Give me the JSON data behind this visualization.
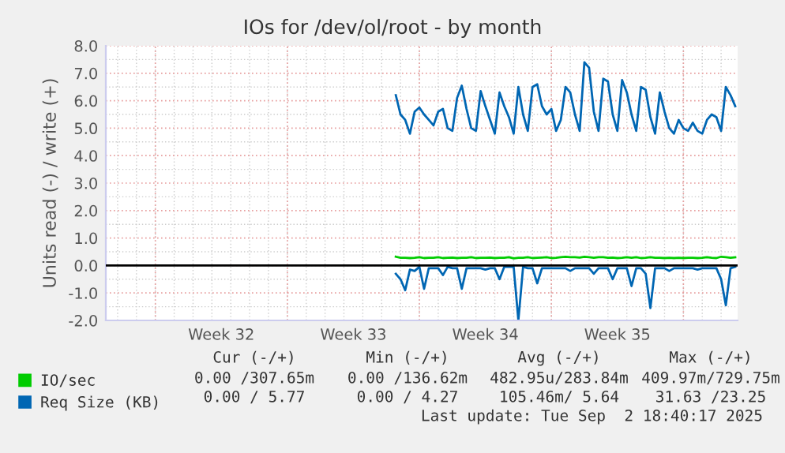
{
  "chart_data": {
    "type": "line",
    "title": "IOs for /dev/ol/root - by month",
    "ylabel": "Units read (-) / write (+)",
    "categories": [
      null,
      null,
      null,
      null,
      null,
      null,
      null,
      null,
      null,
      null,
      null,
      null,
      null,
      null,
      null,
      null,
      null,
      null,
      null,
      null,
      null,
      null,
      null,
      null,
      "Week 32",
      null,
      null,
      null,
      null,
      null,
      null,
      null,
      null,
      null,
      null,
      null,
      null,
      null,
      null,
      null,
      null,
      null,
      null,
      null,
      null,
      null,
      null,
      null,
      null,
      null,
      null,
      null,
      "Week 33",
      null,
      null,
      null,
      null,
      null,
      null,
      null,
      null,
      null,
      null,
      null,
      null,
      null,
      null,
      null,
      null,
      null,
      null,
      null,
      null,
      null,
      null,
      null,
      null,
      null,
      null,
      null,
      "Week 34",
      null,
      null,
      null,
      null,
      null,
      null,
      null,
      null,
      null,
      null,
      null,
      null,
      null,
      null,
      null,
      null,
      null,
      null,
      null,
      null,
      null,
      null,
      null,
      null,
      null,
      null,
      null,
      "Week 35",
      null,
      null,
      null,
      null,
      null,
      null,
      null,
      null,
      null,
      null,
      null,
      null,
      null,
      null,
      null,
      null,
      null,
      null,
      null,
      null,
      null,
      null,
      null,
      null,
      null
    ],
    "ylim": [
      -2,
      8
    ],
    "yticks": [
      {
        "value": -2,
        "label": "-2.0"
      },
      {
        "value": -1,
        "label": "-1.0"
      },
      {
        "value": 0,
        "label": "0.0"
      },
      {
        "value": 1,
        "label": "1.0"
      },
      {
        "value": 2,
        "label": "2.0"
      },
      {
        "value": 3,
        "label": "3.0"
      },
      {
        "value": 4,
        "label": "4.0"
      },
      {
        "value": 5,
        "label": "5.0"
      },
      {
        "value": 6,
        "label": "6.0"
      },
      {
        "value": 7,
        "label": "7.0"
      },
      {
        "value": 8,
        "label": "8.0"
      }
    ],
    "grid": true,
    "legend": "bottom",
    "ref_lines": [
      {
        "axis": "y",
        "value": 0,
        "label": null,
        "color": "#000000"
      }
    ],
    "series": [
      {
        "name": "IO/sec",
        "color": "#00cc00",
        "values": [
          null,
          null,
          null,
          null,
          null,
          null,
          null,
          null,
          null,
          null,
          null,
          null,
          null,
          null,
          null,
          null,
          null,
          null,
          null,
          null,
          null,
          null,
          null,
          null,
          null,
          null,
          null,
          null,
          null,
          null,
          null,
          null,
          null,
          null,
          null,
          null,
          null,
          null,
          null,
          null,
          null,
          null,
          null,
          null,
          null,
          null,
          null,
          null,
          null,
          null,
          null,
          null,
          null,
          null,
          null,
          null,
          null,
          null,
          null,
          null,
          null,
          0.32,
          0.28,
          0.28,
          0.27,
          0.28,
          0.3,
          0.27,
          0.28,
          0.28,
          0.3,
          0.27,
          0.28,
          0.29,
          0.27,
          0.28,
          0.28,
          0.3,
          0.27,
          0.28,
          0.28,
          0.29,
          0.27,
          0.28,
          0.28,
          0.3,
          0.26,
          0.28,
          0.28,
          0.3,
          0.27,
          0.28,
          0.29,
          0.3,
          0.27,
          0.28,
          0.3,
          0.32,
          0.3,
          0.3,
          0.29,
          0.32,
          0.3,
          0.28,
          0.3,
          0.3,
          0.28,
          0.29,
          0.27,
          0.28,
          0.3,
          0.28,
          0.3,
          0.27,
          0.28,
          0.3,
          0.28,
          0.28,
          0.27,
          0.28,
          0.27,
          0.28,
          0.27,
          0.28,
          0.28,
          0.27,
          0.28,
          0.3,
          0.28,
          0.27,
          0.32,
          0.3,
          0.28,
          0.3
        ]
      },
      {
        "name": "Req Size (KB)",
        "color": "#0066b3",
        "values": [
          null,
          null,
          null,
          null,
          null,
          null,
          null,
          null,
          null,
          null,
          null,
          null,
          null,
          null,
          null,
          null,
          null,
          null,
          null,
          null,
          null,
          null,
          null,
          null,
          null,
          null,
          null,
          null,
          null,
          null,
          null,
          null,
          null,
          null,
          null,
          null,
          null,
          null,
          null,
          null,
          null,
          null,
          null,
          null,
          null,
          null,
          null,
          null,
          null,
          null,
          null,
          null,
          null,
          null,
          null,
          null,
          null,
          null,
          null,
          null,
          null,
          6.2,
          5.5,
          5.3,
          4.8,
          5.6,
          5.75,
          5.5,
          5.3,
          5.1,
          5.6,
          5.7,
          5.0,
          4.9,
          6.1,
          6.55,
          5.7,
          5.0,
          4.9,
          6.35,
          5.8,
          5.3,
          4.8,
          6.3,
          5.8,
          5.4,
          4.8,
          6.5,
          5.5,
          4.9,
          6.5,
          6.6,
          5.8,
          5.5,
          5.7,
          4.9,
          5.3,
          6.5,
          6.3,
          5.5,
          4.9,
          7.4,
          7.2,
          5.6,
          4.9,
          6.8,
          6.7,
          5.5,
          4.9,
          6.75,
          6.3,
          5.5,
          4.9,
          6.5,
          6.4,
          5.4,
          4.8,
          6.3,
          5.6,
          5.0,
          4.8,
          5.3,
          5.0,
          4.9,
          5.2,
          4.9,
          4.8,
          5.3,
          5.5,
          5.4,
          4.9,
          6.5,
          6.2,
          5.8
        ]
      },
      {
        "color": "#0066b3",
        "values": [
          null,
          null,
          null,
          null,
          null,
          null,
          null,
          null,
          null,
          null,
          null,
          null,
          null,
          null,
          null,
          null,
          null,
          null,
          null,
          null,
          null,
          null,
          null,
          null,
          null,
          null,
          null,
          null,
          null,
          null,
          null,
          null,
          null,
          null,
          null,
          null,
          null,
          null,
          null,
          null,
          null,
          null,
          null,
          null,
          null,
          null,
          null,
          null,
          null,
          null,
          null,
          null,
          null,
          null,
          null,
          null,
          null,
          null,
          null,
          null,
          null,
          -0.3,
          -0.5,
          -0.9,
          -0.15,
          -0.2,
          -0.05,
          -0.85,
          -0.1,
          -0.1,
          -0.1,
          -0.35,
          -0.05,
          -0.1,
          -0.1,
          -0.85,
          -0.1,
          -0.1,
          -0.1,
          -0.1,
          -0.15,
          -0.1,
          -0.1,
          -0.5,
          -0.05,
          -0.05,
          -0.05,
          -2.0,
          -0.05,
          -0.1,
          -0.1,
          -0.65,
          -0.1,
          -0.1,
          -0.1,
          -0.1,
          -0.1,
          -0.1,
          -0.2,
          -0.1,
          -0.1,
          -0.1,
          -0.1,
          -0.3,
          -0.1,
          -0.1,
          -0.1,
          -0.5,
          -0.1,
          -0.1,
          -0.1,
          -0.75,
          -0.1,
          -0.1,
          -0.3,
          -1.55,
          -0.1,
          -0.1,
          -0.1,
          -0.2,
          -0.1,
          -0.1,
          -0.1,
          -0.1,
          -0.1,
          -0.15,
          -0.1,
          -0.1,
          -0.1,
          -0.1,
          -0.5,
          -1.45,
          -0.1,
          -0.05
        ]
      }
    ],
    "annotations": [
      "Cur (-/+)",
      "Min (-/+)",
      "Avg (-/+)",
      "Max (-/+)",
      "0.00 /307.65m",
      "0.00 /136.62m",
      "482.95u/283.84m",
      "409.97m/729.75m",
      "0.00 / 5.77",
      "0.00 / 4.27",
      "105.46m/ 5.64",
      "31.63 /23.25",
      "Last update: Tue Sep  2 18:40:17 2025"
    ]
  }
}
